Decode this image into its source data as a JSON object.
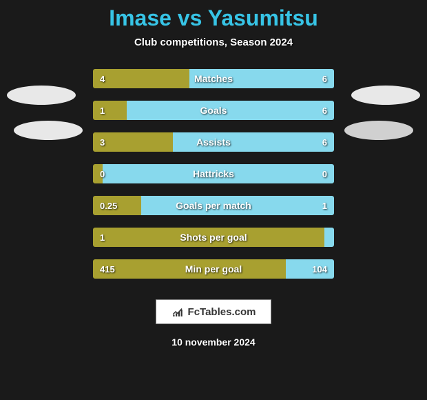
{
  "title": {
    "left": "Imase",
    "vs": "vs",
    "right": "Yasumitsu"
  },
  "subtitle": "Club competitions, Season 2024",
  "colors": {
    "title": "#37c4e6",
    "left_bar": "#a8a030",
    "right_bar": "#87d9ed",
    "background": "#1a1a1a",
    "text": "#ffffff"
  },
  "stats": [
    {
      "label": "Matches",
      "left_value": "4",
      "right_value": "6",
      "left_pct": 40,
      "right_pct": 60
    },
    {
      "label": "Goals",
      "left_value": "1",
      "right_value": "6",
      "left_pct": 14,
      "right_pct": 86
    },
    {
      "label": "Assists",
      "left_value": "3",
      "right_value": "6",
      "left_pct": 33,
      "right_pct": 67
    },
    {
      "label": "Hattricks",
      "left_value": "0",
      "right_value": "0",
      "left_pct": 4,
      "right_pct": 96
    },
    {
      "label": "Goals per match",
      "left_value": "0.25",
      "right_value": "1",
      "left_pct": 20,
      "right_pct": 80
    },
    {
      "label": "Shots per goal",
      "left_value": "1",
      "right_value": "",
      "left_pct": 96,
      "right_pct": 4
    },
    {
      "label": "Min per goal",
      "left_value": "415",
      "right_value": "104",
      "left_pct": 80,
      "right_pct": 20
    }
  ],
  "footer": {
    "brand": "FcTables.com",
    "date": "10 november 2024"
  }
}
